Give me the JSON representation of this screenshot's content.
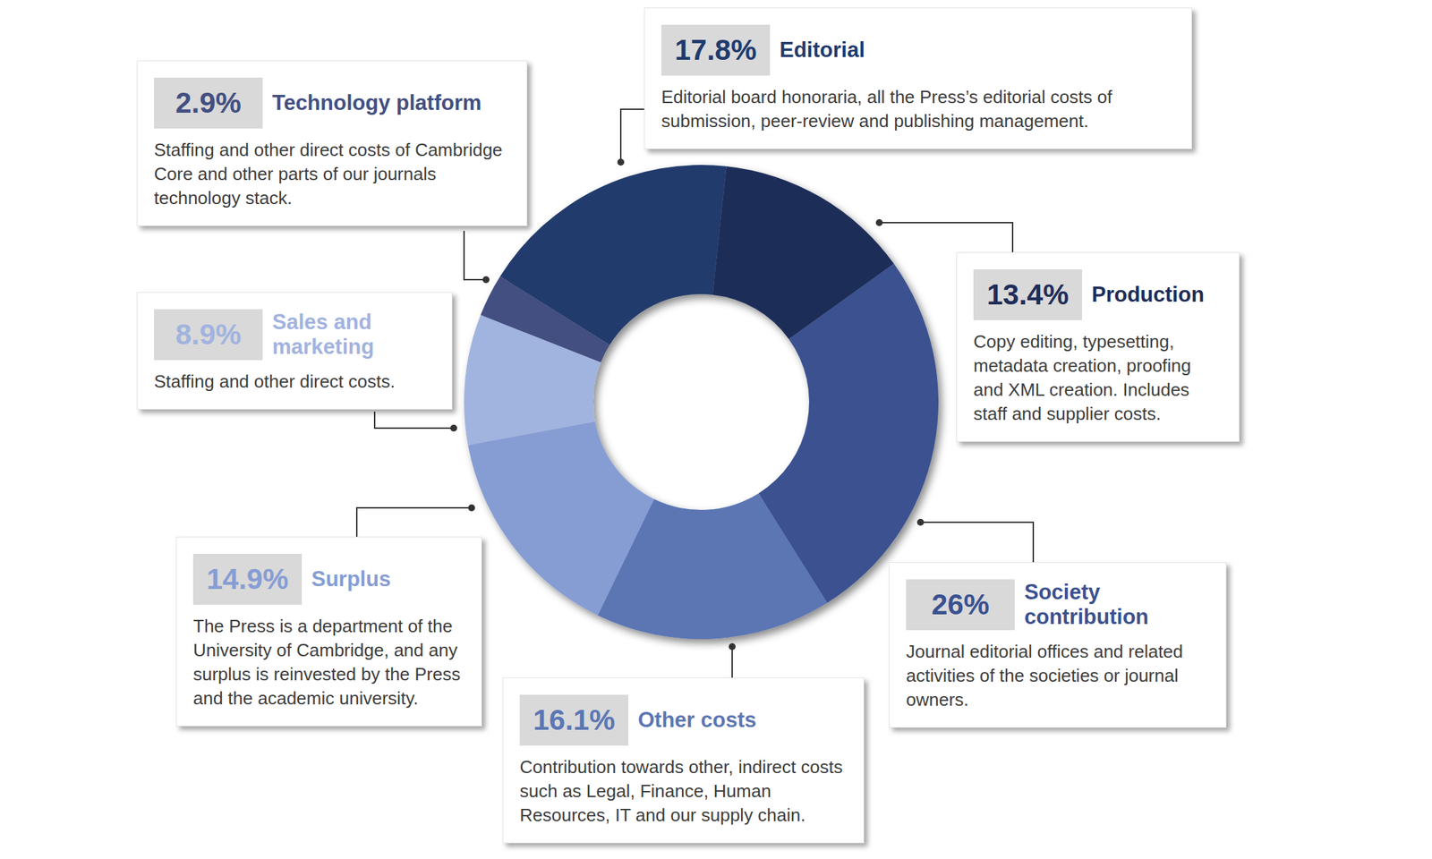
{
  "chart_data": {
    "type": "pie",
    "categories": [
      "Editorial",
      "Production",
      "Society contribution",
      "Other costs",
      "Surplus",
      "Sales and marketing",
      "Technology platform"
    ],
    "values": [
      17.8,
      13.4,
      26,
      16.1,
      14.9,
      8.9,
      2.9
    ],
    "value_labels": [
      "17.8%",
      "13.4%",
      "26%",
      "16.1%",
      "14.9%",
      "8.9%",
      "2.9%"
    ],
    "data_labels": true,
    "colors": [
      "#203a6d",
      "#1e2d58",
      "#3a5190",
      "#5b76b4",
      "#869dd4",
      "#a1b3df",
      "#434f80"
    ],
    "descriptions": [
      "Editorial board honoraria, all the Press’s editorial costs of submission, peer-review and publishing management.",
      "Copy editing, typesetting, metadata creation, proofing and XML creation. Includes staff and supplier costs.",
      "Journal editorial offices and related activities of the societies or journal owners.",
      "Contribution towards other, indirect costs such as Legal, Finance, Human Resources, IT and our supply chain.",
      "The Press is a department of the University of Cambridge, and any surplus is reinvested by the Press and the academic university.",
      "Staffing and other direct costs.",
      "Staffing and other direct costs of Cambridge Core and other parts of our journals technology stack."
    ]
  }
}
